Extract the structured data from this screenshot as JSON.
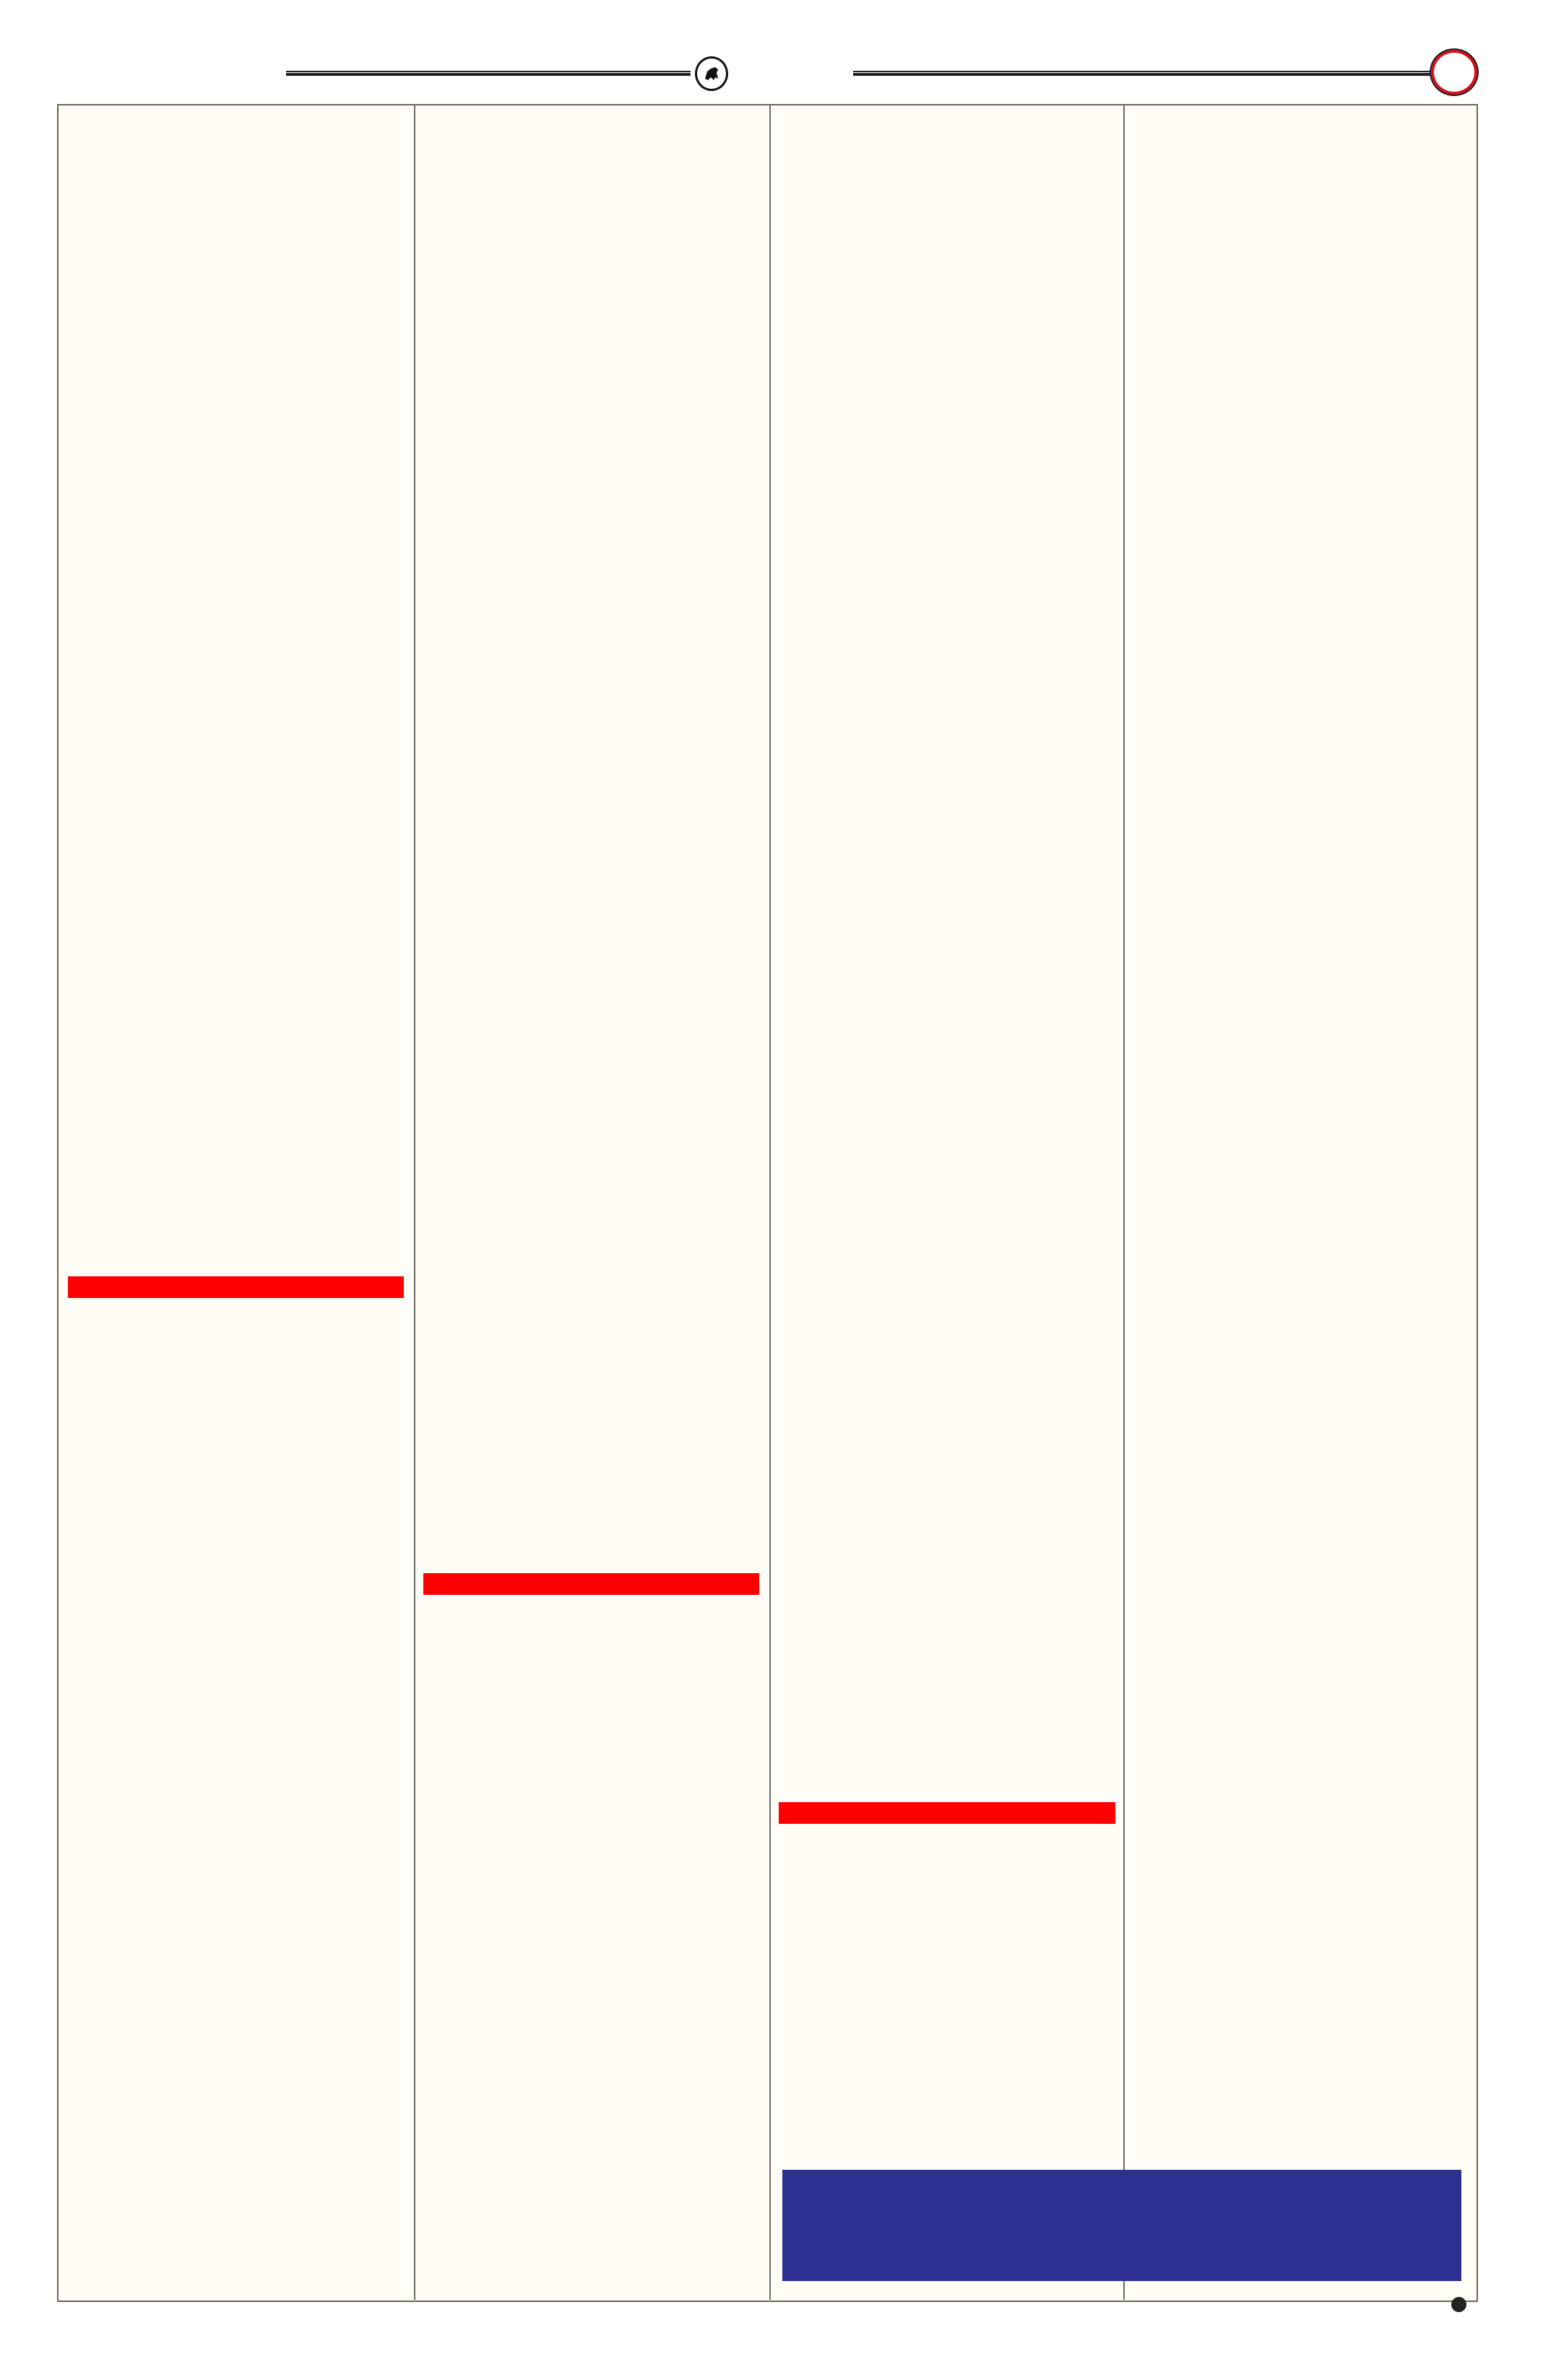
{
  "colors": {
    "page_background": "#fffdf5",
    "accent_red": "#ff0000",
    "accent_blue": "#2e3192",
    "rule": "#222222"
  },
  "header": {
    "left_icon": "animal-emblem-icon",
    "right_icon": "red-ring-icon"
  },
  "columns": [
    {
      "accent_bar": true
    },
    {
      "accent_bar": true
    },
    {
      "accent_bar": true
    },
    {
      "accent_bar": false
    }
  ],
  "footer": {
    "icon": "dot-icon"
  }
}
